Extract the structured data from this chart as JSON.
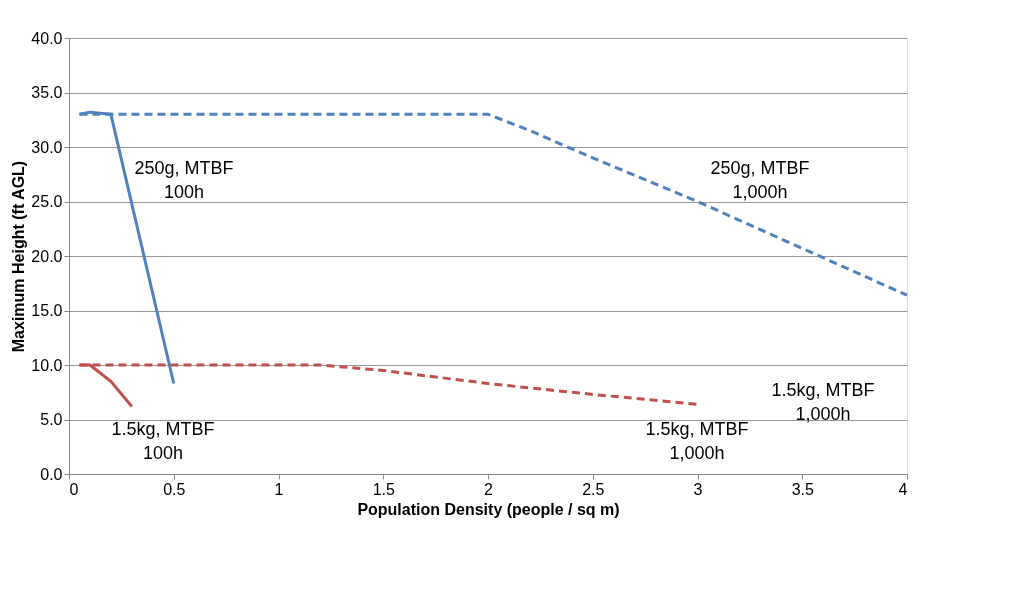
{
  "chart_data": {
    "type": "line",
    "xlabel": "Population Density (people / sq m)",
    "ylabel": "Maximum Height (ft AGL)",
    "xlim": [
      0,
      4
    ],
    "xticks": [
      0,
      0.5,
      1,
      1.5,
      2,
      2.5,
      3,
      3.5,
      4
    ],
    "ylim": [
      0,
      40
    ],
    "yticks": [
      {
        "value": 0,
        "label": "0.0"
      },
      {
        "value": 5,
        "label": "5.0"
      },
      {
        "value": 10,
        "label": "10.0"
      },
      {
        "value": 15,
        "label": "15.0"
      },
      {
        "value": 20,
        "label": "20.0"
      },
      {
        "value": 25,
        "label": "25.0"
      },
      {
        "value": 30,
        "label": "30.0"
      },
      {
        "value": 35,
        "label": "35.0"
      },
      {
        "value": 40,
        "label": "40.0"
      }
    ],
    "grid": "y",
    "marker": "none",
    "series": [
      {
        "name": "250g, MTBF\n100h",
        "color": "#4f81bd",
        "line_style": "solid",
        "x": [
          0.05,
          0.1,
          0.2,
          0.5
        ],
        "values": [
          33,
          33.2,
          33,
          8.3
        ]
      },
      {
        "name": "250g, MTBF\n1,000h",
        "color": "#4f81bd",
        "line_style": "dashed",
        "x": [
          0.05,
          2,
          2.2,
          2.5,
          3,
          3.5,
          4
        ],
        "values": [
          33,
          33,
          31.5,
          29,
          25,
          20.7,
          16.4
        ]
      },
      {
        "name": "1.5kg, MTBF\n100h",
        "color": "#c0504d",
        "line_style": "solid",
        "x": [
          0.05,
          0.1,
          0.2,
          0.3
        ],
        "values": [
          10,
          10,
          8.5,
          6.2
        ]
      },
      {
        "name": "1.5kg, MTBF\n1,000h",
        "color": "#c0504d",
        "line_style": "dashed",
        "x": [
          0.05,
          1.2,
          1.5,
          2,
          2.5,
          3
        ],
        "values": [
          10,
          10,
          9.5,
          8.3,
          7.3,
          6.4
        ]
      }
    ],
    "annotations": [
      "1.5kg, MTBF\n1,000h"
    ]
  }
}
